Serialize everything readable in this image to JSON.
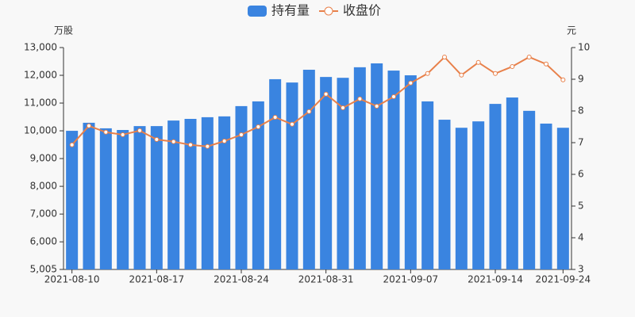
{
  "chart_data": {
    "type": "bar-line",
    "left_unit": "万股",
    "right_unit": "元",
    "categories": [
      "2021-08-10",
      null,
      null,
      null,
      null,
      "2021-08-17",
      null,
      null,
      null,
      null,
      "2021-08-24",
      null,
      null,
      null,
      null,
      "2021-08-31",
      null,
      null,
      null,
      null,
      "2021-09-07",
      null,
      null,
      null,
      null,
      "2021-09-14",
      null,
      null,
      null,
      "2021-09-24"
    ],
    "series": [
      {
        "name": "持有量",
        "type": "bar",
        "color": "#3a84e0",
        "values": [
          10000,
          10290,
          10090,
          10030,
          10170,
          10170,
          10370,
          10430,
          10490,
          10520,
          10890,
          11060,
          11860,
          11740,
          12200,
          11940,
          11910,
          12290,
          12430,
          12170,
          12000,
          11060,
          10400,
          10110,
          10340,
          10970,
          11200,
          10720,
          10260,
          10110
        ]
      },
      {
        "name": "收盘价",
        "type": "line",
        "axis": "y2",
        "color": "#e8804a",
        "values": [
          6.93,
          7.53,
          7.33,
          7.25,
          7.38,
          7.1,
          7.03,
          6.93,
          6.88,
          7.05,
          7.25,
          7.5,
          7.8,
          7.58,
          7.98,
          8.53,
          8.1,
          8.38,
          8.15,
          8.45,
          8.88,
          9.18,
          9.7,
          9.13,
          9.53,
          9.18,
          9.4,
          9.7,
          9.48,
          8.98
        ]
      }
    ],
    "ylim": [
      5005,
      13000
    ],
    "yticks": [
      {
        "value": 5005,
        "label": "5,005"
      },
      {
        "value": 6000,
        "label": "6,000"
      },
      {
        "value": 7000,
        "label": "7,000"
      },
      {
        "value": 8000,
        "label": "8,000"
      },
      {
        "value": 9000,
        "label": "9,000"
      },
      {
        "value": 10000,
        "label": "10,000"
      },
      {
        "value": 11000,
        "label": "11,000"
      },
      {
        "value": 12000,
        "label": "12,000"
      },
      {
        "value": 13000,
        "label": "13,000"
      }
    ],
    "y2lim": [
      3,
      10
    ],
    "y2ticks": [
      3,
      4,
      5,
      6,
      7,
      8,
      9,
      10
    ]
  }
}
